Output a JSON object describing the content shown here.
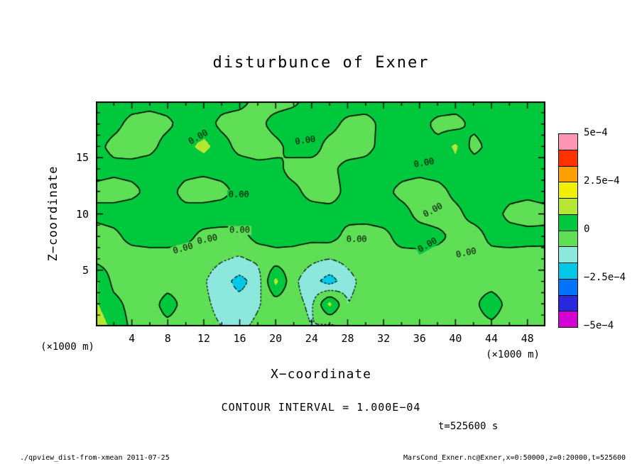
{
  "title": "disturbunce of Exner",
  "axes": {
    "x_label": "X−coordinate",
    "y_label": "Z−coordinate",
    "x_unit": "(×1000 m)",
    "y_unit": "(×1000 m)"
  },
  "annotations": {
    "contour_interval_text": "CONTOUR INTERVAL = 1.000E−04",
    "time_text": "t=525600 s"
  },
  "footer": {
    "left": "./qpview_dist-from-xmean  2011-07-25",
    "right": "MarsCond_Exner.nc@Exner,x=0:50000,z=0:20000,t=525600"
  },
  "chart_data": {
    "type": "heatmap",
    "subtype": "filled-contour",
    "title": "disturbunce of Exner",
    "xlabel": "X−coordinate",
    "ylabel": "Z−coordinate",
    "x_unit_label": "(×1000 m)",
    "y_unit_label": "(×1000 m)",
    "xlim": [
      0,
      50
    ],
    "ylim": [
      0,
      20
    ],
    "x_ticks": [
      4,
      8,
      12,
      16,
      20,
      24,
      28,
      32,
      36,
      40,
      44,
      48
    ],
    "y_ticks": [
      5,
      10,
      15
    ],
    "x_minor_step": 2,
    "x_major_step": 4,
    "y_minor_step": 1,
    "y_major_step": 5,
    "value_scale": 0.0001,
    "contour_interval": 0.0001,
    "contour_levels": {
      "solid": [
        0
      ],
      "dashed": [
        -1,
        -2
      ]
    },
    "contour_labels": [
      {
        "x": 23.3,
        "z": 16.5,
        "angle": -8,
        "text": "0.00"
      },
      {
        "x": 11.4,
        "z": 16.8,
        "angle": -30,
        "text": "0.00"
      },
      {
        "x": 36.5,
        "z": 14.5,
        "angle": -10,
        "text": "0.00"
      },
      {
        "x": 15.9,
        "z": 11.7,
        "angle": 0,
        "text": "0.00"
      },
      {
        "x": 37.5,
        "z": 10.3,
        "angle": -28,
        "text": "0.00"
      },
      {
        "x": 16.0,
        "z": 8.5,
        "angle": 0,
        "text": "0.00"
      },
      {
        "x": 12.4,
        "z": 7.7,
        "angle": -12,
        "text": "0.00"
      },
      {
        "x": 29.0,
        "z": 7.7,
        "angle": 0,
        "text": "0.00"
      },
      {
        "x": 36.9,
        "z": 7.2,
        "angle": -30,
        "text": "0.00"
      },
      {
        "x": 9.7,
        "z": 6.9,
        "angle": -15,
        "text": "0.00"
      },
      {
        "x": 41.2,
        "z": 6.5,
        "angle": -12,
        "text": "0.00"
      }
    ],
    "grid": {
      "x_start": 0,
      "x_end": 50,
      "z_start": 0,
      "z_end": 20,
      "values_unit": "1e-4",
      "rows_order": "bottom_to_top",
      "values": [
        [
          1.6,
          0.7,
          -0.2,
          -0.4,
          -0.3,
          -0.5,
          -0.7,
          -1.0,
          -1.2,
          -0.8,
          -0.4,
          -0.6,
          -1.0,
          -1.2,
          -0.8,
          -0.4,
          -0.2,
          -0.3,
          -0.2,
          -0.3,
          -0.2,
          -0.3,
          -0.2,
          -0.4,
          -0.3,
          -0.2
        ],
        [
          1.1,
          0.3,
          -0.3,
          -0.5,
          0.5,
          -0.4,
          -0.8,
          -1.3,
          -1.6,
          -1.1,
          -0.5,
          -0.7,
          -1.2,
          1.3,
          -1.0,
          -0.5,
          -0.3,
          -0.4,
          -0.3,
          -0.4,
          -0.3,
          -0.2,
          0.5,
          -0.3,
          -0.4,
          -0.3
        ],
        [
          1.2,
          -0.3,
          -0.5,
          -0.7,
          -0.5,
          -0.5,
          -0.9,
          -1.6,
          -2.4,
          -1.5,
          1.3,
          -0.8,
          -1.6,
          -2.5,
          -1.4,
          -0.6,
          -0.4,
          -0.3,
          -0.4,
          -0.5,
          -0.4,
          -0.3,
          -0.4,
          -0.5,
          -0.4,
          -0.3
        ],
        [
          -0.3,
          -0.5,
          -0.6,
          -0.5,
          -0.4,
          -0.5,
          -0.6,
          -0.9,
          -1.1,
          -0.8,
          -0.5,
          -0.5,
          -0.8,
          -1.0,
          -0.7,
          -0.4,
          -0.3,
          -0.4,
          -0.4,
          -0.5,
          -0.4,
          -0.3,
          -0.4,
          -0.5,
          -0.5,
          -0.4
        ],
        [
          -0.5,
          -0.3,
          0.4,
          0.5,
          0.4,
          0.3,
          -0.3,
          -0.5,
          -0.4,
          0.4,
          0.5,
          0.4,
          0.3,
          0.4,
          -0.3,
          -0.5,
          -0.3,
          0.4,
          0.5,
          0.3,
          -0.3,
          -0.5,
          0.3,
          0.5,
          0.4,
          0.3
        ],
        [
          0.3,
          0.5,
          0.6,
          0.5,
          0.3,
          0.4,
          0.6,
          0.7,
          0.5,
          0.4,
          0.3,
          0.4,
          0.5,
          0.4,
          0.3,
          0.4,
          0.5,
          0.4,
          -0.3,
          -0.5,
          -0.3,
          0.4,
          0.5,
          -0.3,
          -0.5,
          -0.3
        ],
        [
          -0.3,
          -0.5,
          -0.3,
          0.3,
          0.4,
          -0.4,
          -0.6,
          -0.4,
          0.4,
          0.5,
          0.4,
          0.3,
          -0.4,
          -0.5,
          0.3,
          0.5,
          0.3,
          -0.3,
          -0.5,
          -0.4,
          0.3,
          0.5,
          0.6,
          0.4,
          0.3,
          0.4
        ],
        [
          0.4,
          0.3,
          0.4,
          0.5,
          0.6,
          0.4,
          0.3,
          0.5,
          0.6,
          0.4,
          0.3,
          -0.4,
          -0.5,
          -0.3,
          0.4,
          0.5,
          0.6,
          0.4,
          0.3,
          0.5,
          0.6,
          0.7,
          0.5,
          0.4,
          0.3,
          0.5
        ],
        [
          0.3,
          -0.3,
          -0.5,
          -0.3,
          0.4,
          0.7,
          1.3,
          0.5,
          -0.4,
          -0.6,
          -0.3,
          0.4,
          0.5,
          -0.4,
          -0.6,
          -0.4,
          0.4,
          0.5,
          0.4,
          0.3,
          1.2,
          -0.4,
          0.4,
          0.6,
          0.4,
          0.3
        ],
        [
          0.5,
          0.3,
          -0.3,
          -0.4,
          -0.2,
          0.4,
          0.5,
          -0.3,
          -0.5,
          -0.3,
          0.4,
          0.6,
          0.5,
          0.4,
          -0.3,
          -0.4,
          0.3,
          0.5,
          0.4,
          -0.3,
          -0.4,
          0.3,
          0.5,
          0.7,
          0.5,
          0.4
        ],
        [
          0.6,
          0.5,
          0.4,
          0.3,
          0.4,
          0.5,
          0.6,
          0.4,
          0.3,
          -0.3,
          -0.4,
          -0.2,
          0.4,
          0.5,
          0.6,
          0.5,
          0.4,
          0.3,
          0.5,
          0.6,
          0.5,
          0.4,
          0.5,
          0.6,
          0.6,
          0.5
        ]
      ]
    },
    "colorbar": {
      "boundaries": [
        -5,
        -4,
        -3,
        -2,
        -1,
        0,
        1,
        2,
        3,
        4,
        5
      ],
      "colors_low_to_high": [
        "#d200d2",
        "#2828dc",
        "#0073ff",
        "#00c8e6",
        "#8ce8dc",
        "#5fdf55",
        "#00c83c",
        "#b4e632",
        "#f0f000",
        "#ffa000",
        "#ff3200",
        "#ff96b4"
      ],
      "ticks": [
        {
          "value": 5,
          "label": "5e−4"
        },
        {
          "value": 2.5,
          "label": "2.5e−4"
        },
        {
          "value": 0,
          "label": "0"
        },
        {
          "value": -2.5,
          "label": "−2.5e−4"
        },
        {
          "value": -5,
          "label": "−5e−4"
        }
      ]
    }
  }
}
